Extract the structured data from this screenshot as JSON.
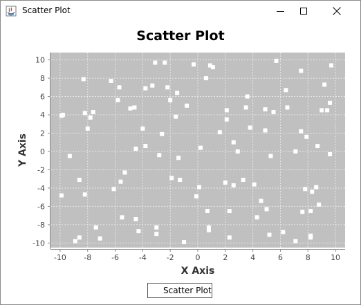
{
  "window": {
    "title": "Scatter Plot",
    "icons": {
      "app": "java-app-icon",
      "minimize": "minimize-icon",
      "maximize": "maximize-icon",
      "close": "close-icon"
    }
  },
  "chart_data": {
    "type": "scatter",
    "title": "Scatter Plot",
    "xlabel": "X Axis",
    "ylabel": "Y Axis",
    "xlim": [
      -10.7,
      10.7
    ],
    "ylim": [
      -10.5,
      10.8
    ],
    "xticks": [
      -10,
      -8,
      -6,
      -4,
      -2,
      0,
      2,
      4,
      6,
      8,
      10
    ],
    "yticks": [
      -10,
      -8,
      -6,
      -4,
      -2,
      0,
      2,
      4,
      6,
      8,
      10
    ],
    "grid": true,
    "legend_position": "bottom",
    "colors": {
      "plot_background": "#c0c0c0",
      "marker": "#ffffff",
      "gridline": "#e6e6e6"
    },
    "series": [
      {
        "name": "Scatter Plot",
        "points": [
          [
            -9.9,
            3.9
          ],
          [
            -9.8,
            4.0
          ],
          [
            -9.9,
            -4.8
          ],
          [
            -9.3,
            -0.5
          ],
          [
            -8.9,
            -9.8
          ],
          [
            -8.6,
            -9.4
          ],
          [
            -8.6,
            -3.1
          ],
          [
            -8.3,
            7.9
          ],
          [
            -8.2,
            4.2
          ],
          [
            -8.2,
            -4.7
          ],
          [
            -8.0,
            2.5
          ],
          [
            -7.8,
            3.7
          ],
          [
            -7.6,
            4.3
          ],
          [
            -7.4,
            -8.3
          ],
          [
            -7.1,
            -9.5
          ],
          [
            -6.3,
            7.7
          ],
          [
            -6.1,
            -4.1
          ],
          [
            -5.8,
            5.6
          ],
          [
            -5.7,
            7.0
          ],
          [
            -5.6,
            -3.3
          ],
          [
            -5.5,
            -7.2
          ],
          [
            -5.3,
            -2.3
          ],
          [
            -4.9,
            4.7
          ],
          [
            -4.6,
            4.8
          ],
          [
            -4.5,
            0.3
          ],
          [
            -4.5,
            -7.4
          ],
          [
            -4.3,
            -8.7
          ],
          [
            -4.0,
            2.5
          ],
          [
            -3.8,
            6.9
          ],
          [
            -3.8,
            0.6
          ],
          [
            -3.3,
            7.2
          ],
          [
            -3.1,
            9.7
          ],
          [
            -3.0,
            -8.3
          ],
          [
            -3.0,
            -9.0
          ],
          [
            -2.8,
            -0.4
          ],
          [
            -2.6,
            1.9
          ],
          [
            -2.4,
            9.7
          ],
          [
            -2.2,
            7.0
          ],
          [
            -2.0,
            5.6
          ],
          [
            -1.9,
            -2.9
          ],
          [
            -1.6,
            3.8
          ],
          [
            -1.5,
            6.4
          ],
          [
            -1.4,
            -0.7
          ],
          [
            -1.3,
            -3.1
          ],
          [
            -1.0,
            -9.9
          ],
          [
            -0.8,
            5.0
          ],
          [
            -0.3,
            9.5
          ],
          [
            -0.1,
            -4.9
          ],
          [
            0.2,
            0.4
          ],
          [
            0.1,
            -3.9
          ],
          [
            0.6,
            8.0
          ],
          [
            0.7,
            -6.5
          ],
          [
            0.8,
            -8.6
          ],
          [
            0.8,
            -8.3
          ],
          [
            0.9,
            9.4
          ],
          [
            1.1,
            9.2
          ],
          [
            1.6,
            2.1
          ],
          [
            2.0,
            -3.4
          ],
          [
            2.1,
            4.5
          ],
          [
            2.1,
            3.5
          ],
          [
            2.3,
            -6.5
          ],
          [
            2.3,
            -9.4
          ],
          [
            2.6,
            1.0
          ],
          [
            2.6,
            -3.7
          ],
          [
            2.9,
            0.0
          ],
          [
            3.3,
            -3.1
          ],
          [
            3.5,
            4.8
          ],
          [
            3.6,
            6.0
          ],
          [
            3.8,
            2.6
          ],
          [
            4.1,
            -3.6
          ],
          [
            4.3,
            -7.2
          ],
          [
            4.6,
            -5.4
          ],
          [
            4.9,
            2.3
          ],
          [
            4.9,
            4.6
          ],
          [
            5.0,
            -6.3
          ],
          [
            5.2,
            -9.1
          ],
          [
            5.3,
            -0.5
          ],
          [
            5.5,
            4.3
          ],
          [
            5.7,
            9.9
          ],
          [
            6.2,
            -8.8
          ],
          [
            6.4,
            6.7
          ],
          [
            6.5,
            4.8
          ],
          [
            7.1,
            0.0
          ],
          [
            7.1,
            -9.8
          ],
          [
            7.5,
            8.8
          ],
          [
            7.5,
            2.2
          ],
          [
            7.6,
            -6.6
          ],
          [
            7.8,
            -4.1
          ],
          [
            7.9,
            1.6
          ],
          [
            8.2,
            -9.2
          ],
          [
            8.2,
            -6.5
          ],
          [
            8.2,
            -9.4
          ],
          [
            8.3,
            -4.4
          ],
          [
            8.6,
            -3.9
          ],
          [
            8.7,
            0.6
          ],
          [
            8.8,
            -5.8
          ],
          [
            9.0,
            4.5
          ],
          [
            9.2,
            7.3
          ],
          [
            9.4,
            4.5
          ],
          [
            9.6,
            5.3
          ],
          [
            9.6,
            -0.3
          ],
          [
            9.7,
            9.4
          ]
        ]
      }
    ]
  }
}
